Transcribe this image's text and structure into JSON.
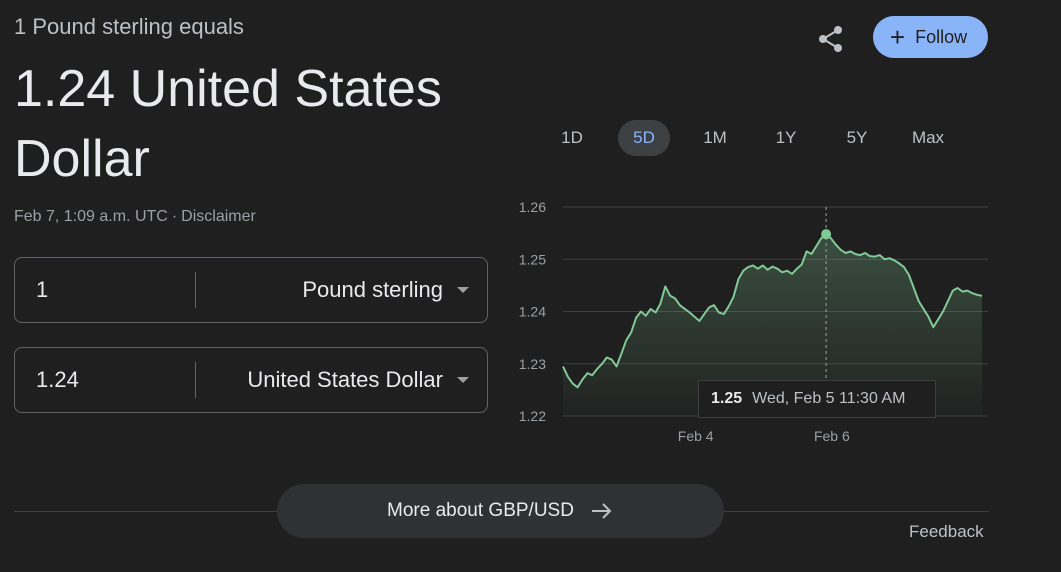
{
  "header": {
    "subtitle": "1 Pound sterling equals",
    "value_line": "1.24 United States Dollar",
    "timestamp": "Feb 7, 1:09 a.m. UTC",
    "separator": "·",
    "disclaimer": "Disclaimer"
  },
  "actions": {
    "share_icon": "share-icon",
    "follow_label": "Follow",
    "follow_color": "#8ab4f8"
  },
  "converter": {
    "from": {
      "amount": "1",
      "currency": "Pound sterling"
    },
    "to": {
      "amount": "1.24",
      "currency": "United States Dollar"
    }
  },
  "ranges": [
    {
      "label": "1D",
      "active": false
    },
    {
      "label": "5D",
      "active": true
    },
    {
      "label": "1M",
      "active": false
    },
    {
      "label": "1Y",
      "active": false
    },
    {
      "label": "5Y",
      "active": false
    },
    {
      "label": "Max",
      "active": false
    }
  ],
  "chart_data": {
    "type": "area",
    "x_tick_labels": [
      "Feb 4",
      "Feb 6"
    ],
    "y_ticks": [
      1.22,
      1.23,
      1.24,
      1.25,
      1.26
    ],
    "ylim": [
      1.22,
      1.26
    ],
    "xlim": [
      0,
      120
    ],
    "x_tick_positions": [
      38,
      77
    ],
    "line_color": "#81c995",
    "grid": true,
    "series": [
      {
        "values": [
          1.2295,
          1.2275,
          1.2262,
          1.2255,
          1.227,
          1.2282,
          1.2278,
          1.229,
          1.23,
          1.2312,
          1.2308,
          1.2295,
          1.232,
          1.2345,
          1.236,
          1.2388,
          1.24,
          1.2392,
          1.2405,
          1.2398,
          1.2415,
          1.2448,
          1.243,
          1.2425,
          1.2412,
          1.2405,
          1.2398,
          1.239,
          1.2382,
          1.2395,
          1.2408,
          1.2412,
          1.2398,
          1.2395,
          1.241,
          1.2428,
          1.2462,
          1.2478,
          1.2485,
          1.2488,
          1.2482,
          1.2488,
          1.248,
          1.2486,
          1.2482,
          1.2475,
          1.2478,
          1.2472,
          1.2482,
          1.249,
          1.2515,
          1.251,
          1.2525,
          1.254,
          1.2548,
          1.254,
          1.2528,
          1.2518,
          1.2512,
          1.2515,
          1.251,
          1.2508,
          1.2512,
          1.2506,
          1.2505,
          1.2508,
          1.25,
          1.2502,
          1.2498,
          1.2492,
          1.2485,
          1.247,
          1.2445,
          1.242,
          1.2405,
          1.239,
          1.237,
          1.2385,
          1.24,
          1.242,
          1.244,
          1.2445,
          1.2438,
          1.244,
          1.2435,
          1.2432,
          1.243
        ]
      }
    ],
    "hover": {
      "index": 54,
      "value": "1.25",
      "time": "Wed, Feb 5 11:30 AM"
    }
  },
  "footer": {
    "more_label": "More about GBP/USD",
    "feedback": "Feedback"
  }
}
